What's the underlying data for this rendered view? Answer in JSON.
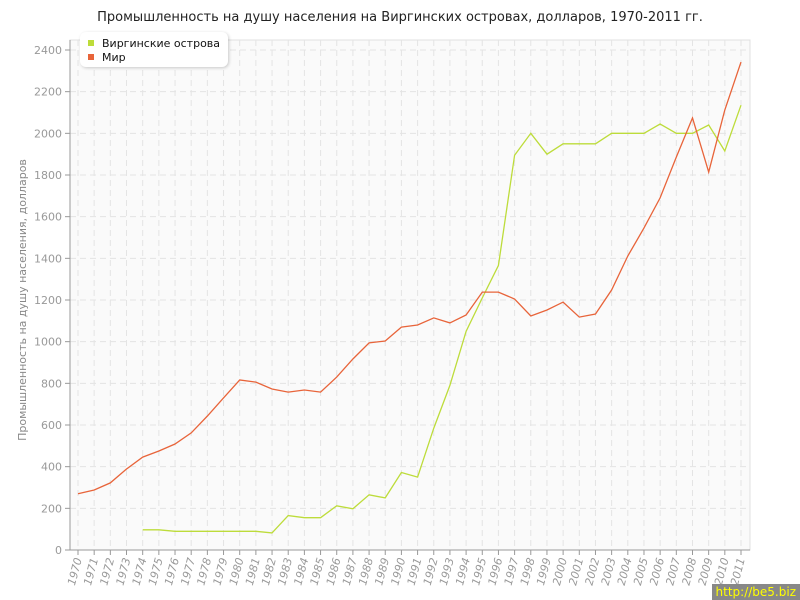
{
  "chart_data": {
    "type": "line",
    "title": "Промышленность на душу населения на Виргинских островах, долларов, 1970-2011 гг.",
    "xlabel": "",
    "ylabel": "Промышленность на душу населения, долларов",
    "ylim": [
      0,
      2400
    ],
    "yticks": [
      0,
      200,
      400,
      600,
      800,
      1000,
      1200,
      1400,
      1600,
      1800,
      2000,
      2200,
      2400
    ],
    "x": [
      1970,
      1971,
      1972,
      1973,
      1974,
      1975,
      1976,
      1977,
      1978,
      1979,
      1980,
      1981,
      1982,
      1983,
      1984,
      1985,
      1986,
      1987,
      1988,
      1989,
      1990,
      1991,
      1992,
      1993,
      1994,
      1995,
      1996,
      1997,
      1998,
      1999,
      2000,
      2001,
      2002,
      2003,
      2004,
      2005,
      2006,
      2007,
      2008,
      2009,
      2010,
      2011
    ],
    "grid": true,
    "legend": "top-left",
    "series": [
      {
        "name": "Виргинские острова",
        "color": "#bddc3a",
        "values": [
          null,
          null,
          null,
          null,
          97,
          97,
          90,
          90,
          90,
          90,
          90,
          90,
          82,
          165,
          155,
          155,
          212,
          198,
          265,
          250,
          372,
          350,
          585,
          790,
          1050,
          1210,
          1365,
          1895,
          2000,
          1900,
          1950,
          1950,
          1950,
          2000,
          2000,
          2000,
          2045,
          2000,
          2000,
          2040,
          1915,
          2135
        ]
      },
      {
        "name": "Мир",
        "color": "#e8643a",
        "values": [
          270,
          288,
          322,
          389,
          446,
          475,
          509,
          562,
          643,
          730,
          816,
          806,
          773,
          758,
          768,
          758,
          830,
          917,
          994,
          1003,
          1070,
          1080,
          1114,
          1090,
          1128,
          1238,
          1238,
          1205,
          1123,
          1152,
          1190,
          1118,
          1133,
          1248,
          1411,
          1546,
          1690,
          1886,
          2074,
          1814,
          2112,
          2342
        ]
      }
    ]
  },
  "watermark": "http://be5.biz"
}
